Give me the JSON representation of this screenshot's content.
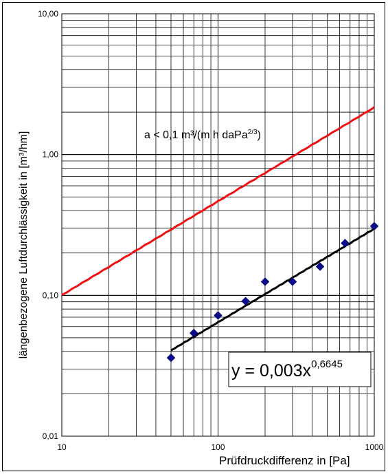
{
  "chart_data": {
    "type": "scatter",
    "x_scale": "log",
    "y_scale": "log",
    "xlim": [
      10,
      1000
    ],
    "ylim": [
      0.01,
      10
    ],
    "grid": true,
    "xlabel": "Prüfdruckdifferenz in [Pa]",
    "ylabel": "längenbezogene Luftdurchlässigkeit in [m³/hm]",
    "x_ticks": [
      {
        "value": 10,
        "label": "10"
      },
      {
        "value": 100,
        "label": "100"
      },
      {
        "value": 1000,
        "label": "1000"
      }
    ],
    "y_ticks": [
      {
        "value": 0.01,
        "label": "0,01"
      },
      {
        "value": 0.1,
        "label": "0,10"
      },
      {
        "value": 1,
        "label": "1,00"
      },
      {
        "value": 10,
        "label": "10,00"
      }
    ],
    "measured_points": {
      "color": "#0a0a8c",
      "marker": "diamond",
      "points": [
        {
          "x": 50,
          "y": 0.036
        },
        {
          "x": 70,
          "y": 0.054
        },
        {
          "x": 100,
          "y": 0.072
        },
        {
          "x": 150,
          "y": 0.091
        },
        {
          "x": 200,
          "y": 0.125
        },
        {
          "x": 300,
          "y": 0.125
        },
        {
          "x": 450,
          "y": 0.16
        },
        {
          "x": 650,
          "y": 0.235
        },
        {
          "x": 1000,
          "y": 0.31
        }
      ]
    },
    "trend_line": {
      "color": "#000000",
      "coefficient": 0.00303,
      "exponent": 0.6645,
      "x_range": [
        50,
        1000
      ],
      "label_base": "y = 0,003x",
      "label_exp": "0,6645"
    },
    "limit_line": {
      "color": "#ee1111",
      "coefficient": 0.0217,
      "exponent": 0.6667,
      "x_range": [
        10,
        1000
      ],
      "label_base": "a < 0,1 m³/(m h daPa",
      "label_sup": "2/3",
      "label_close": ")"
    }
  }
}
